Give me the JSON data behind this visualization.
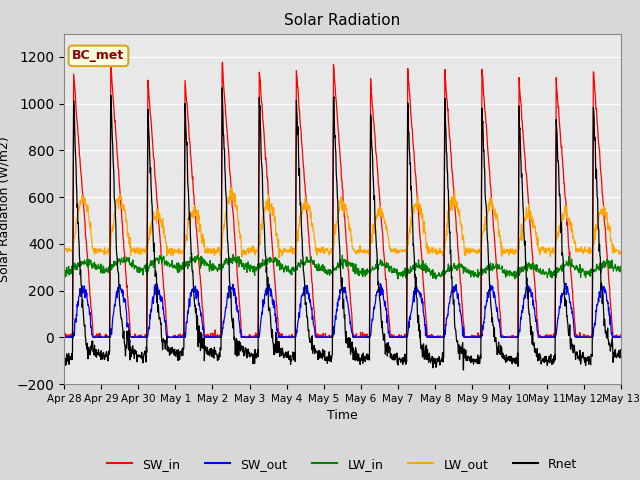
{
  "title": "Solar Radiation",
  "xlabel": "Time",
  "ylabel": "Solar Radiation (W/m2)",
  "ylim": [
    -200,
    1300
  ],
  "yticks": [
    -200,
    0,
    200,
    400,
    600,
    800,
    1000,
    1200
  ],
  "legend_label": "BC_met",
  "series_labels": [
    "SW_in",
    "SW_out",
    "LW_in",
    "LW_out",
    "Rnet"
  ],
  "series_colors": [
    "red",
    "blue",
    "green",
    "orange",
    "black"
  ],
  "fig_facecolor": "#d8d8d8",
  "ax_facecolor": "#e8e8e8",
  "n_days": 15,
  "x_tick_labels": [
    "Apr 28",
    "Apr 29",
    "Apr 30",
    "May 1",
    "May 2",
    "May 3",
    "May 4",
    "May 5",
    "May 6",
    "May 7",
    "May 8",
    "May 9",
    "May 10",
    "May 11",
    "May 12",
    "May 13"
  ],
  "dt": 0.25,
  "sunrise": 5.5,
  "sunset": 19.0
}
